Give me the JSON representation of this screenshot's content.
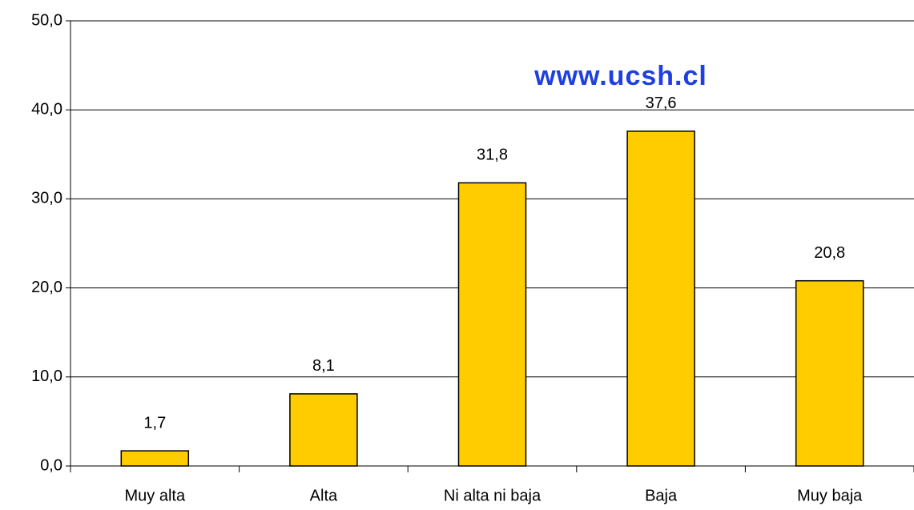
{
  "chart_data": {
    "type": "bar",
    "annotation": "www.ucsh.cl",
    "categories": [
      "Muy alta",
      "Alta",
      "Ni alta ni baja",
      "Baja",
      "Muy baja"
    ],
    "values": [
      1.7,
      8.1,
      31.8,
      37.6,
      20.8
    ],
    "value_labels": [
      "1,7",
      "8,1",
      "31,8",
      "37,6",
      "20,8"
    ],
    "color": "#ffcc00",
    "ylim": [
      0,
      50
    ],
    "yticks": [
      {
        "value": 0,
        "label": "0,0"
      },
      {
        "value": 10,
        "label": "10,0"
      },
      {
        "value": 20,
        "label": "20,0"
      },
      {
        "value": 30,
        "label": "30,0"
      },
      {
        "value": 40,
        "label": "40,0"
      },
      {
        "value": 50,
        "label": "50,0"
      }
    ],
    "grid": true
  }
}
